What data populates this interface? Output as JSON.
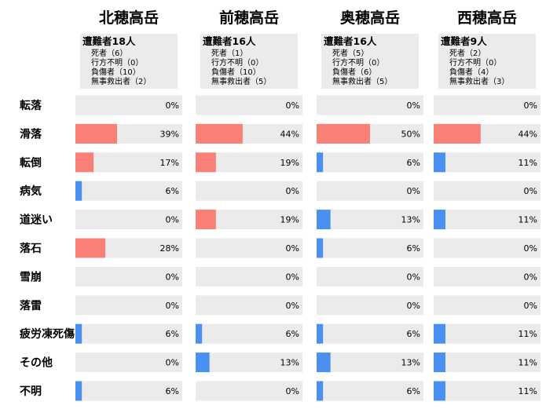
{
  "chart_data": {
    "type": "bar",
    "orientation": "horizontal",
    "categories": [
      "転落",
      "滑落",
      "転倒",
      "病気",
      "道迷い",
      "落石",
      "雪崩",
      "落雷",
      "疲労凍死傷",
      "その他",
      "不明"
    ],
    "colors": {
      "high": "#f98077",
      "low": "#4a90f0",
      "track": "#ebebeb",
      "summary_bg": "#ebebeb"
    },
    "mountains": [
      {
        "name": "北穂高岳",
        "summary_title": "遭難者18人",
        "summary_lines": [
          "死者（6）",
          "行方不明（0）",
          "負傷者（10）",
          "無事救出者（2）"
        ],
        "values": [
          0,
          39,
          17,
          6,
          0,
          28,
          0,
          0,
          6,
          0,
          6
        ],
        "labels": [
          "0%",
          "39%",
          "17%",
          "6%",
          "0%",
          "28%",
          "0%",
          "0%",
          "6%",
          "0%",
          "6%"
        ]
      },
      {
        "name": "前穂高岳",
        "summary_title": "遭難者16人",
        "summary_lines": [
          "死者（1）",
          "行方不明（0）",
          "負傷者（10）",
          "無事救出者（5）"
        ],
        "values": [
          0,
          44,
          19,
          0,
          19,
          0,
          0,
          0,
          6,
          13,
          0
        ],
        "labels": [
          "0%",
          "44%",
          "19%",
          "0%",
          "19%",
          "0%",
          "0%",
          "0%",
          "6%",
          "13%",
          "0%"
        ]
      },
      {
        "name": "奥穂高岳",
        "summary_title": "遭難者16人",
        "summary_lines": [
          "死者（5）",
          "行方不明（0）",
          "負傷者（6）",
          "無事救出者（5）"
        ],
        "values": [
          0,
          50,
          6,
          0,
          13,
          6,
          0,
          0,
          6,
          13,
          6
        ],
        "labels": [
          "0%",
          "50%",
          "6%",
          "0%",
          "13%",
          "6%",
          "0%",
          "0%",
          "6%",
          "13%",
          "6%"
        ]
      },
      {
        "name": "西穂高岳",
        "summary_title": "遭難者9人",
        "summary_lines": [
          "死者（2）",
          "行方不明（0）",
          "負傷者（4）",
          "無事救出者（3）"
        ],
        "values": [
          0,
          44,
          11,
          0,
          11,
          0,
          0,
          0,
          11,
          11,
          11
        ],
        "labels": [
          "0%",
          "44%",
          "11%",
          "0%",
          "11%",
          "0%",
          "0%",
          "0%",
          "11%",
          "11%",
          "11%"
        ]
      }
    ]
  }
}
